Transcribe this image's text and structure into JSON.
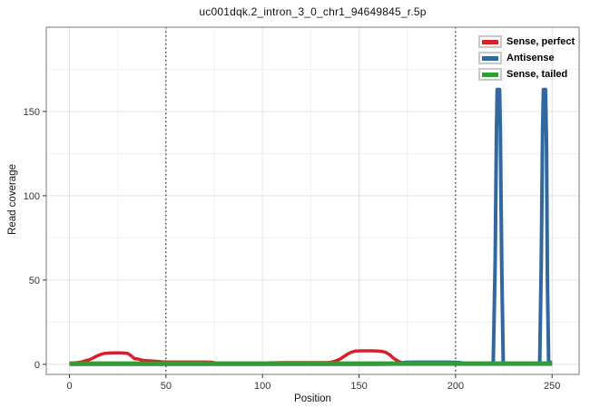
{
  "title": "uc001dqk.2_intron_3_0_chr1_94649845_r.5p",
  "chart_data": {
    "type": "line",
    "title": "uc001dqk.2_intron_3_0_chr1_94649845_r.5p",
    "xlabel": "Position",
    "ylabel": "Read coverage",
    "x_ticks": [
      0,
      50,
      100,
      150,
      200,
      250
    ],
    "y_ticks": [
      0,
      50,
      100,
      150
    ],
    "x_minor": [
      25,
      75,
      125,
      175,
      225
    ],
    "y_minor": [
      25,
      75,
      125,
      175
    ],
    "x_range": [
      -12,
      264
    ],
    "y_range": [
      -6,
      200
    ],
    "grid": true,
    "legend_position": "top-right-inside",
    "reference_lines_x": [
      50,
      200
    ],
    "colors": {
      "major_grid": "#e3e3e3",
      "minor_grid": "#f1f1f1",
      "panel_border": "#979797",
      "reference_line": "#000000",
      "tick": "#333333"
    },
    "series": [
      {
        "name": "Sense, perfect",
        "color": "#d8202a",
        "line_width": 3.5,
        "points": [
          [
            0,
            0
          ],
          [
            2,
            0.7
          ],
          [
            4,
            1
          ],
          [
            6,
            1.3
          ],
          [
            8,
            2
          ],
          [
            10,
            2.6
          ],
          [
            12,
            3.6
          ],
          [
            14,
            4.8
          ],
          [
            16,
            5.8
          ],
          [
            18,
            6.4
          ],
          [
            21,
            6.7
          ],
          [
            24,
            6.8
          ],
          [
            27,
            6.8
          ],
          [
            30,
            6.5
          ],
          [
            31,
            5.8
          ],
          [
            32,
            5
          ],
          [
            33,
            4
          ],
          [
            34,
            3.2
          ],
          [
            35,
            3.3
          ],
          [
            36,
            3
          ],
          [
            37,
            2.6
          ],
          [
            39,
            2.2
          ],
          [
            42,
            2
          ],
          [
            45,
            1.8
          ],
          [
            48,
            1.5
          ],
          [
            52,
            1.3
          ],
          [
            58,
            1.3
          ],
          [
            64,
            1.3
          ],
          [
            70,
            1.3
          ],
          [
            74,
            1.2
          ],
          [
            76,
            0.6
          ],
          [
            77,
            0
          ],
          [
            103,
            0
          ],
          [
            104,
            0.9
          ],
          [
            110,
            1
          ],
          [
            118,
            1
          ],
          [
            126,
            1
          ],
          [
            134,
            1
          ],
          [
            136,
            1.3
          ],
          [
            138,
            2
          ],
          [
            140,
            3
          ],
          [
            142,
            4.5
          ],
          [
            144,
            6
          ],
          [
            146,
            7.2
          ],
          [
            148,
            7.8
          ],
          [
            151,
            8
          ],
          [
            154,
            8
          ],
          [
            157,
            8
          ],
          [
            160,
            7.9
          ],
          [
            162,
            7.6
          ],
          [
            164,
            7
          ],
          [
            166,
            5.5
          ],
          [
            168,
            3.5
          ],
          [
            170,
            2
          ],
          [
            172,
            1
          ],
          [
            174,
            0.5
          ],
          [
            180,
            0.3
          ],
          [
            195,
            0.3
          ],
          [
            210,
            0.3
          ],
          [
            230,
            0.3
          ],
          [
            250,
            0.3
          ]
        ]
      },
      {
        "name": "Antisense",
        "color": "#33689e",
        "line_width": 4,
        "points": [
          [
            0,
            0.1
          ],
          [
            60,
            0.1
          ],
          [
            120,
            0.1
          ],
          [
            160,
            0.1
          ],
          [
            168,
            0.2
          ],
          [
            171,
            0.6
          ],
          [
            174,
            1.1
          ],
          [
            181,
            1.2
          ],
          [
            189,
            1.2
          ],
          [
            197,
            1.2
          ],
          [
            202,
            1
          ],
          [
            204,
            0.6
          ],
          [
            207,
            0.3
          ],
          [
            213,
            0.2
          ],
          [
            218,
            0.3
          ],
          [
            219.5,
            1
          ],
          [
            220.5,
            60
          ],
          [
            221.2,
            140
          ],
          [
            221.6,
            163
          ],
          [
            222.8,
            163
          ],
          [
            223.2,
            140
          ],
          [
            223.9,
            60
          ],
          [
            224.7,
            1
          ],
          [
            226,
            0.4
          ],
          [
            234,
            0.3
          ],
          [
            242,
            0.4
          ],
          [
            243.6,
            1
          ],
          [
            244.4,
            60
          ],
          [
            245.1,
            140
          ],
          [
            245.5,
            163
          ],
          [
            246.6,
            163
          ],
          [
            247.1,
            130
          ],
          [
            247.6,
            50
          ],
          [
            248.2,
            2
          ],
          [
            248.8,
            1.1
          ],
          [
            250,
            1
          ]
        ]
      },
      {
        "name": "Sense, tailed",
        "color": "#2f9e33",
        "line_width": 5,
        "points": [
          [
            0,
            0.4
          ],
          [
            25,
            0.4
          ],
          [
            50,
            0.4
          ],
          [
            75,
            0.4
          ],
          [
            100,
            0.4
          ],
          [
            125,
            0.4
          ],
          [
            150,
            0.4
          ],
          [
            175,
            0.4
          ],
          [
            200,
            0.4
          ],
          [
            225,
            0.4
          ],
          [
            250,
            0.4
          ]
        ]
      }
    ]
  }
}
